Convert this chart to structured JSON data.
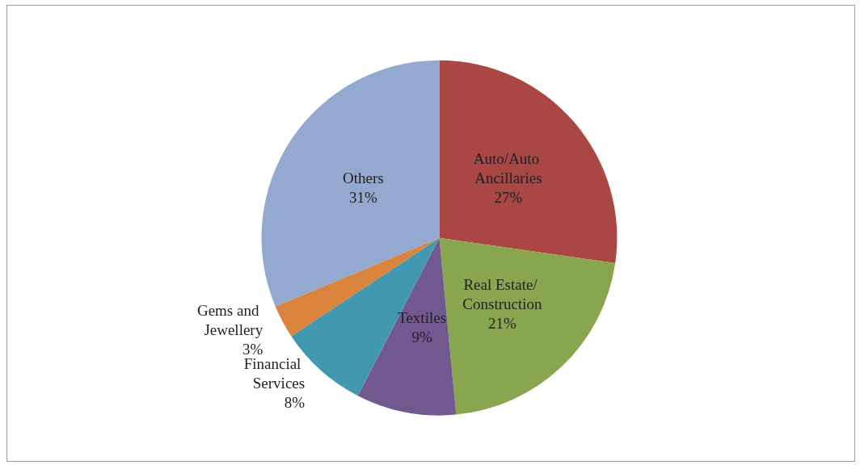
{
  "chart_data": {
    "type": "pie",
    "categories": [
      "Auto/Auto Ancillaries",
      "Real Estate/ Construction",
      "Textiles",
      "Financial Services",
      "Gems and Jewellery",
      "Others"
    ],
    "values": [
      27,
      21,
      9,
      8,
      3,
      31
    ],
    "colors": [
      "#aa4643",
      "#89a54e",
      "#71588f",
      "#4198af",
      "#db843d",
      "#93a9cf"
    ],
    "value_labels": [
      "27%",
      "21%",
      "9%",
      "8%",
      "3%",
      "31%"
    ],
    "legend": false
  }
}
